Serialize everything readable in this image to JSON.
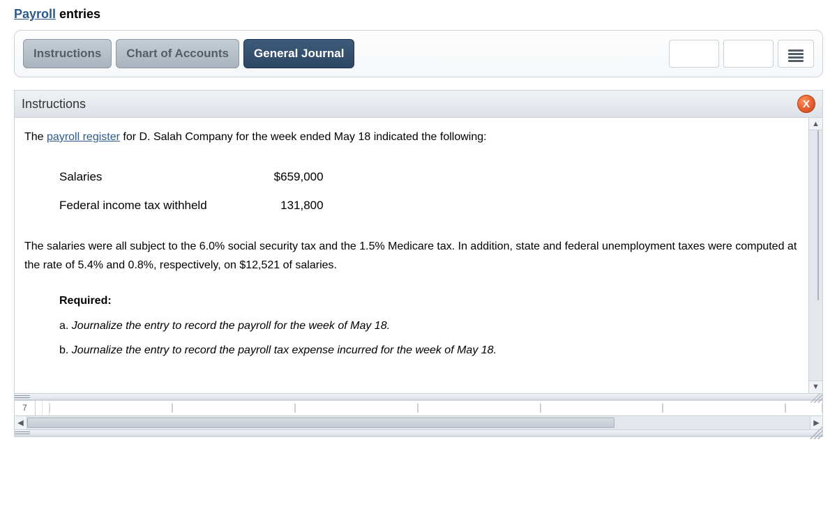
{
  "page_title": {
    "link_text": "Payroll",
    "suffix": " entries"
  },
  "tabs": {
    "instructions": "Instructions",
    "chart_of_accounts": "Chart of Accounts",
    "general_journal": "General Journal"
  },
  "section": {
    "header": "Instructions",
    "close_label": "X"
  },
  "body": {
    "intro_prefix": "The ",
    "intro_link": "payroll register",
    "intro_suffix": " for D. Salah Company for the week ended May 18 indicated the following:",
    "rows": [
      {
        "label": "Salaries",
        "amount": "$659,000"
      },
      {
        "label": "Federal income tax withheld",
        "amount": "131,800"
      }
    ],
    "paragraph": "The salaries were all subject to the 6.0% social security tax and the 1.5% Medicare tax. In addition, state and federal unemployment taxes were computed at the rate of 5.4% and 0.8%, respectively, on $12,521 of salaries.",
    "required_label": "Required:",
    "requirements": [
      {
        "ord": "a.",
        "text": "Journalize the entry to record the payroll for the week of May 18."
      },
      {
        "ord": "b.",
        "text": "Journalize the entry to record the payroll tax expense incurred for the week of May 18."
      }
    ]
  },
  "ruler": {
    "first_cell": "7"
  },
  "colors": {
    "link": "#2b5b8c",
    "tab_active_bg": "#2c4763",
    "tab_inactive_bg": "#a9b3bd",
    "border": "#c8d0d8",
    "close_bg": "#e25b2b"
  }
}
